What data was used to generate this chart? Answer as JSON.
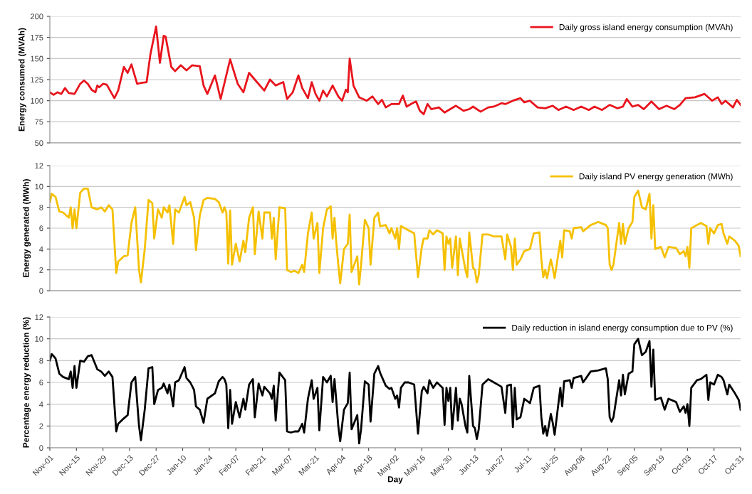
{
  "chart_data": [
    {
      "type": "line",
      "ylabel": "Energy consumed (MVAh)",
      "ylim": [
        50,
        200
      ],
      "yticks": [
        50,
        75,
        100,
        125,
        150,
        175,
        200
      ],
      "grid": "y",
      "legend": "top right",
      "line_style": "solid",
      "marker": "none",
      "categories": [
        null,
        null,
        null,
        null,
        null,
        null,
        null,
        null,
        null,
        null,
        null,
        null,
        null,
        null,
        null,
        null,
        null,
        null,
        null,
        null,
        null,
        null,
        null,
        null,
        null,
        null,
        null,
        null,
        null,
        null,
        null,
        null,
        null,
        null,
        null,
        null,
        null,
        null,
        null,
        null,
        null,
        null,
        null,
        null,
        null,
        null,
        null,
        null,
        null,
        null,
        null,
        null,
        null,
        null,
        null,
        null,
        null,
        null,
        null,
        null,
        null,
        null,
        null,
        null,
        null,
        null,
        null,
        null,
        null,
        null,
        null,
        null,
        null,
        null,
        null,
        null,
        null,
        null,
        null,
        null,
        null,
        null,
        null,
        null,
        null,
        null,
        null,
        null,
        null,
        null,
        null,
        null,
        null,
        null,
        null,
        null,
        null,
        null,
        null,
        null,
        null,
        null,
        null,
        null,
        null,
        null,
        null,
        null,
        null,
        null,
        null,
        null,
        null,
        null,
        null,
        null,
        null,
        null,
        null,
        null,
        null,
        null,
        null,
        null,
        null,
        null,
        null,
        null,
        null,
        null,
        null,
        null,
        null,
        null,
        null,
        null,
        null,
        null,
        null,
        null,
        null,
        null,
        null,
        null,
        null,
        null,
        null,
        null,
        null,
        null,
        null,
        null,
        null,
        null,
        null,
        null,
        null,
        null,
        null,
        null,
        null,
        null,
        null,
        null,
        null,
        null,
        null,
        null,
        null,
        null,
        null,
        null,
        null,
        null,
        null,
        null,
        null,
        null,
        null,
        null,
        null,
        null,
        null,
        null,
        null,
        null,
        null,
        null,
        null,
        null,
        null,
        null,
        null,
        null,
        null,
        null,
        null,
        null,
        null,
        null,
        null,
        null,
        null,
        null,
        null,
        null,
        null,
        null,
        null,
        null,
        null,
        null,
        null,
        null,
        null,
        null,
        null,
        null,
        null,
        null,
        null,
        null,
        null,
        null,
        null,
        null,
        null,
        null,
        null,
        null,
        null,
        null,
        null,
        null,
        null,
        null,
        null,
        null,
        null,
        null,
        null,
        null,
        null,
        null,
        null,
        null,
        null,
        null,
        null,
        null,
        null,
        null,
        null,
        null,
        null,
        null,
        null,
        null,
        null,
        null,
        null,
        null,
        null,
        null,
        null,
        null,
        null,
        null,
        null,
        null,
        null,
        null,
        null,
        null,
        null,
        null,
        null,
        null,
        null,
        null,
        null,
        null,
        null,
        null,
        null,
        null,
        null,
        null,
        null,
        null,
        null,
        null,
        null,
        null,
        null,
        null,
        null,
        null,
        null,
        null,
        null,
        null,
        null,
        null,
        null,
        null,
        null,
        null,
        null,
        null,
        null,
        null,
        null,
        null,
        null,
        null,
        null,
        null,
        null,
        null,
        null,
        null,
        null,
        null,
        null,
        null,
        null,
        null,
        null,
        null,
        null,
        null,
        null,
        null,
        null,
        null,
        null,
        null,
        null,
        null,
        null,
        null,
        null,
        null,
        null,
        null,
        null,
        null,
        null,
        null,
        null,
        null,
        null,
        null,
        null,
        null,
        null,
        null,
        null,
        null,
        null,
        null,
        null,
        null,
        null
      ],
      "series": [
        {
          "name": "Daily gross island energy consumption (MVAh)",
          "color": "#e8141c",
          "values": [
            110,
            null,
            107,
            null,
            110,
            null,
            108,
            null,
            115,
            null,
            109,
            null,
            null,
            108,
            null,
            null,
            120,
            null,
            124,
            null,
            120,
            null,
            113,
            null,
            110,
            118,
            116,
            null,
            120,
            null,
            119,
            null,
            null,
            null,
            103,
            null,
            112,
            null,
            null,
            140,
            null,
            133,
            null,
            143,
            null,
            null,
            120,
            null,
            121,
            null,
            null,
            122,
            null,
            155,
            null,
            null,
            188,
            null,
            145,
            null,
            177,
            176,
            null,
            null,
            140,
            null,
            135,
            null,
            null,
            142,
            null,
            null,
            136,
            null,
            null,
            142,
            null,
            null,
            null,
            141,
            null,
            118,
            null,
            108,
            null,
            null,
            null,
            130,
            null,
            null,
            102,
            null,
            null,
            null,
            null,
            149,
            null,
            null,
            null,
            120,
            null,
            null,
            110,
            null,
            null,
            133,
            null,
            null,
            125,
            null,
            null,
            null,
            null,
            112,
            null,
            null,
            125,
            null,
            null,
            118,
            null,
            null,
            null,
            122,
            null,
            102,
            null,
            null,
            110,
            null,
            null,
            130,
            null,
            115,
            null,
            null,
            103,
            null,
            122,
            null,
            108,
            null,
            100,
            null,
            112,
            null,
            105,
            null,
            null,
            118,
            null,
            null,
            105,
            null,
            100,
            null,
            113,
            110,
            150,
            null,
            118,
            null,
            null,
            104,
            null,
            null,
            null,
            100,
            null,
            null,
            105,
            null,
            null,
            96,
            null,
            101,
            null,
            92,
            null,
            null,
            96,
            null,
            null,
            null,
            96,
            null,
            106,
            null,
            93,
            null,
            null,
            97,
            null,
            99,
            null,
            88,
            null,
            84,
            null,
            96,
            null,
            90,
            null,
            null,
            null,
            92,
            null,
            null,
            86,
            null,
            null,
            90,
            null,
            null,
            94,
            null,
            null,
            null,
            88,
            null,
            null,
            90,
            null,
            93,
            null,
            null,
            null,
            87,
            null,
            null,
            null,
            92,
            null,
            null,
            93,
            null,
            null,
            null,
            97,
            null,
            96,
            null,
            null,
            null,
            100,
            null,
            null,
            null,
            103,
            null,
            98,
            null,
            null,
            100,
            null,
            null,
            null,
            92,
            null,
            null,
            null,
            91,
            null,
            null,
            null,
            94,
            null,
            null,
            89,
            null,
            null,
            null,
            93,
            null,
            null,
            null,
            89,
            null,
            null,
            null,
            93,
            null,
            null,
            null,
            89,
            null,
            null,
            93,
            null,
            null,
            null,
            89,
            null,
            null,
            null,
            95,
            null,
            null,
            null,
            91,
            null,
            null,
            93,
            null,
            102,
            null,
            null,
            93,
            null,
            null,
            95,
            null,
            null,
            90,
            null,
            null,
            null,
            99,
            null,
            null,
            null,
            90,
            null,
            null,
            null,
            94,
            null,
            null,
            null,
            90,
            null,
            null,
            95,
            null,
            null,
            103,
            null,
            null,
            null,
            null,
            104,
            null,
            null,
            null,
            null,
            108,
            null,
            null,
            null,
            100,
            null,
            null,
            104,
            null,
            96,
            null,
            100,
            null,
            null,
            null,
            92,
            null,
            101,
            null,
            95
          ]
        }
      ]
    },
    {
      "type": "line",
      "ylabel": "Energy generated (MWh)",
      "ylim": [
        0,
        12
      ],
      "yticks": [
        0,
        2,
        4,
        6,
        8,
        10,
        12
      ],
      "grid": "y",
      "legend": "top right",
      "line_style": "solid",
      "marker": "none",
      "categories": [
        null,
        null,
        null,
        null,
        null,
        null,
        null,
        null,
        null,
        null,
        null,
        null,
        null,
        null,
        null,
        null,
        null,
        null,
        null,
        null,
        null,
        null,
        null,
        null,
        null,
        null,
        null,
        null,
        null,
        null,
        null,
        null,
        null,
        null,
        null,
        null,
        null,
        null,
        null,
        null,
        null,
        null,
        null,
        null,
        null,
        null,
        null,
        null,
        null,
        null,
        null,
        null,
        null,
        null,
        null,
        null,
        null,
        null,
        null,
        null,
        null,
        null,
        null,
        null,
        null,
        null,
        null,
        null,
        null,
        null,
        null,
        null,
        null,
        null,
        null,
        null,
        null,
        null,
        null,
        null,
        null,
        null,
        null,
        null,
        null,
        null,
        null,
        null,
        null,
        null,
        null,
        null,
        null,
        null,
        null,
        null,
        null,
        null,
        null,
        null,
        null,
        null,
        null,
        null,
        null,
        null,
        null,
        null,
        null,
        null,
        null,
        null,
        null,
        null,
        null,
        null,
        null,
        null,
        null,
        null,
        null,
        null,
        null,
        null,
        null,
        null,
        null,
        null,
        null,
        null,
        null,
        null,
        null,
        null,
        null,
        null,
        null,
        null,
        null,
        null,
        null,
        null,
        null,
        null,
        null,
        null,
        null,
        null,
        null,
        null,
        null,
        null,
        null,
        null,
        null,
        null,
        null,
        null,
        null,
        null,
        null,
        null,
        null,
        null,
        null,
        null,
        null,
        null,
        null,
        null,
        null,
        null,
        null,
        null,
        null,
        null,
        null,
        null,
        null,
        null,
        null,
        null,
        null,
        null,
        null,
        null,
        null,
        null,
        null,
        null,
        null,
        null,
        null,
        null,
        null,
        null,
        null,
        null,
        null,
        null,
        null,
        null,
        null,
        null,
        null,
        null,
        null,
        null,
        null,
        null,
        null,
        null,
        null,
        null,
        null,
        null,
        null,
        null,
        null,
        null,
        null,
        null,
        null,
        null,
        null,
        null,
        null,
        null,
        null,
        null,
        null,
        null,
        null,
        null,
        null,
        null,
        null,
        null,
        null,
        null,
        null,
        null,
        null,
        null,
        null,
        null,
        null,
        null,
        null,
        null,
        null,
        null,
        null,
        null,
        null,
        null,
        null,
        null,
        null,
        null,
        null,
        null,
        null,
        null,
        null,
        null,
        null,
        null,
        null,
        null,
        null,
        null,
        null,
        null,
        null,
        null,
        null,
        null,
        null,
        null,
        null,
        null,
        null,
        null,
        null,
        null,
        null,
        null,
        null,
        null,
        null,
        null,
        null,
        null,
        null,
        null,
        null,
        null,
        null,
        null,
        null,
        null,
        null,
        null,
        null,
        null,
        null,
        null,
        null,
        null,
        null,
        null,
        null,
        null,
        null,
        null,
        null,
        null,
        null,
        null,
        null,
        null,
        null,
        null,
        null,
        null,
        null,
        null,
        null,
        null,
        null,
        null,
        null,
        null,
        null,
        null,
        null,
        null,
        null,
        null,
        null,
        null,
        null,
        null,
        null,
        null,
        null,
        null,
        null,
        null,
        null,
        null,
        null,
        null,
        null,
        null,
        null,
        null,
        null,
        null,
        null,
        null,
        null,
        null,
        null
      ],
      "series": [
        {
          "name": "Daily island PV energy generation (MWh)",
          "color": "#f5c000",
          "values": [
            8.5,
            9.3,
            null,
            9.0,
            null,
            7.6,
            null,
            7.5,
            null,
            null,
            7.0,
            8.0,
            6.0,
            7.8,
            6.0,
            null,
            9.4,
            null,
            9.8,
            null,
            9.8,
            null,
            8.0,
            null,
            null,
            7.8,
            null,
            8.0,
            null,
            7.6,
            null,
            8.2,
            null,
            7.8,
            null,
            1.7,
            2.8,
            null,
            null,
            3.3,
            null,
            3.4,
            null,
            6.5,
            null,
            8.0,
            null,
            2.0,
            0.8,
            null,
            4.0,
            null,
            8.7,
            null,
            8.4,
            5.0,
            null,
            7.8,
            null,
            7.0,
            8.0,
            null,
            7.5,
            8.2,
            null,
            4.5,
            7.8,
            null,
            7.5,
            null,
            null,
            9.0,
            8.2,
            null,
            8.5,
            null,
            7.0,
            3.9,
            null,
            7.2,
            null,
            8.7,
            null,
            8.9,
            null,
            null,
            null,
            8.8,
            null,
            8.5,
            null,
            7.5,
            8.0,
            7.5,
            2.6,
            7.7,
            2.5,
            null,
            4.5,
            null,
            2.8,
            null,
            4.8,
            3.7,
            null,
            7.0,
            null,
            8.0,
            3.5,
            null,
            7.6,
            null,
            5.0,
            7.5,
            null,
            null,
            7.5,
            5.0,
            7.0,
            3.0,
            null,
            8.0,
            null,
            null,
            7.9,
            2.0,
            null,
            1.8,
            null,
            1.9,
            null,
            1.7,
            null,
            2.5,
            1.8,
            null,
            5.5,
            null,
            7.5,
            5.0,
            null,
            6.5,
            1.7,
            null,
            6.0,
            null,
            7.8,
            null,
            8.1,
            5.0,
            7.0,
            4.5,
            2.5,
            0.7,
            null,
            4.0,
            null,
            4.5,
            7.3,
            1.8,
            null,
            null,
            3.3,
            0.6,
            2.5,
            null,
            6.8,
            null,
            6.0,
            2.5,
            null,
            7.0,
            null,
            7.5,
            6.2,
            null,
            null,
            6.3,
            null,
            5.5,
            6.0,
            null,
            5.0,
            6.0,
            4.0,
            6.2,
            null,
            6.0,
            null,
            5.8,
            null,
            null,
            5.5,
            null,
            1.3,
            null,
            4.2,
            5.0,
            null,
            5.0,
            5.8,
            null,
            5.4,
            null,
            5.8,
            null,
            null,
            5.5,
            2.0,
            5.2,
            4.5,
            5.0,
            2.2,
            null,
            5.2,
            1.5,
            5.0,
            4.0,
            null,
            2.0,
            1.3,
            5.6,
            null,
            2.2,
            2.0,
            0.8,
            1.5,
            null,
            5.4,
            null,
            null,
            5.4,
            null,
            null,
            5.2,
            null,
            null,
            null,
            5.2,
            null,
            3.0,
            5.4,
            null,
            4.2,
            2.0,
            5.0,
            2.5,
            null,
            3.0,
            null,
            3.8,
            null,
            null,
            4.0,
            null,
            5.5,
            null,
            null,
            5.6,
            3.0,
            1.3,
            2.0,
            1.2,
            null,
            3.0,
            2.2,
            1.2,
            null,
            null,
            4.8,
            3.2,
            5.8,
            null,
            null,
            5.7,
            5.0,
            6.0,
            null,
            null,
            null,
            6.1,
            5.7,
            null,
            null,
            null,
            6.3,
            null,
            null,
            null,
            6.6,
            null,
            null,
            null,
            6.3,
            6.0,
            2.5,
            2.0,
            2.5,
            null,
            null,
            6.5,
            4.5,
            6.4,
            4.5,
            null,
            6.0,
            null,
            6.6,
            9.0,
            null,
            9.6,
            null,
            8.0,
            null,
            7.8,
            null,
            9.3,
            5.0,
            8.2,
            4.0,
            null,
            null,
            4.2,
            null,
            3.2,
            null,
            4.2,
            null,
            null,
            null,
            4.1,
            null,
            3.5,
            null,
            3.8,
            3.3,
            4.2,
            2.2,
            6.0,
            null,
            null,
            6.3,
            null,
            6.5,
            null,
            null,
            6.2,
            4.5,
            6.0,
            null,
            5.5,
            null,
            6.3,
            null,
            6.4,
            5.5,
            null,
            4.5,
            5.2,
            null,
            null,
            4.8,
            null,
            4.3,
            3.3
          ]
        }
      ]
    },
    {
      "type": "line",
      "xlabel": "Day",
      "ylabel": "Percentage energy reduction (%)",
      "ylim": [
        0,
        12
      ],
      "yticks": [
        0,
        2,
        4,
        6,
        8,
        10,
        12
      ],
      "grid": "y",
      "legend": "top right",
      "line_style": "solid",
      "marker": "none",
      "categories": [
        "Nov-01",
        null,
        null,
        null,
        null,
        null,
        null,
        null,
        null,
        null,
        null,
        null,
        null,
        null,
        "Nov-15",
        null,
        null,
        null,
        null,
        null,
        null,
        null,
        null,
        null,
        null,
        null,
        null,
        null,
        "Nov-29",
        null,
        null,
        null,
        null,
        null,
        null,
        null,
        null,
        null,
        null,
        null,
        null,
        null,
        "Dec-13",
        null,
        null,
        null,
        null,
        null,
        null,
        null,
        null,
        null,
        null,
        null,
        null,
        null,
        "Dec-27",
        null,
        null,
        null,
        null,
        null,
        null,
        null,
        null,
        null,
        null,
        null,
        null,
        null,
        "Jan-10",
        null,
        null,
        null,
        null,
        null,
        null,
        null,
        null,
        null,
        null,
        null,
        null,
        null,
        "Jan-24",
        null,
        null,
        null,
        null,
        null,
        null,
        null,
        null,
        null,
        null,
        null,
        null,
        null,
        "Feb-07",
        null,
        null,
        null,
        null,
        null,
        null,
        null,
        null,
        null,
        null,
        null,
        null,
        null,
        "Feb-21",
        null,
        null,
        null,
        null,
        null,
        null,
        null,
        null,
        null,
        null,
        null,
        null,
        null,
        "Mar-07",
        null,
        null,
        null,
        null,
        null,
        null,
        null,
        null,
        null,
        null,
        null,
        null,
        null,
        "Mar-21",
        null,
        null,
        null,
        null,
        null,
        null,
        null,
        null,
        null,
        null,
        null,
        null,
        null,
        "Apr-04",
        null,
        null,
        null,
        null,
        null,
        null,
        null,
        null,
        null,
        null,
        null,
        null,
        null,
        "Apr-18",
        null,
        null,
        null,
        null,
        null,
        null,
        null,
        null,
        null,
        null,
        null,
        null,
        null,
        "May-02",
        null,
        null,
        null,
        null,
        null,
        null,
        null,
        null,
        null,
        null,
        null,
        null,
        null,
        "May-16",
        null,
        null,
        null,
        null,
        null,
        null,
        null,
        null,
        null,
        null,
        null,
        null,
        null,
        "May-30",
        null,
        null,
        null,
        null,
        null,
        null,
        null,
        null,
        null,
        null,
        null,
        null,
        null,
        "Jun-13",
        null,
        null,
        null,
        null,
        null,
        null,
        null,
        null,
        null,
        null,
        null,
        null,
        null,
        "Jun-27",
        null,
        null,
        null,
        null,
        null,
        null,
        null,
        null,
        null,
        null,
        null,
        null,
        null,
        "Jul-11",
        null,
        null,
        null,
        null,
        null,
        null,
        null,
        null,
        null,
        null,
        null,
        null,
        null,
        "Jul-25",
        null,
        null,
        null,
        null,
        null,
        null,
        null,
        null,
        null,
        null,
        null,
        null,
        null,
        "Aug-08",
        null,
        null,
        null,
        null,
        null,
        null,
        null,
        null,
        null,
        null,
        null,
        null,
        null,
        "Aug-22",
        null,
        null,
        null,
        null,
        null,
        null,
        null,
        null,
        null,
        null,
        null,
        null,
        null,
        "Sep-05",
        null,
        null,
        null,
        null,
        null,
        null,
        null,
        null,
        null,
        null,
        null,
        null,
        null,
        "Sep-19",
        null,
        null,
        null,
        null,
        null,
        null,
        null,
        null,
        null,
        null,
        null,
        null,
        null,
        "Oct-03",
        null,
        null,
        null,
        null,
        null,
        null,
        null,
        null,
        null,
        null,
        null,
        null,
        null,
        "Oct-17",
        null,
        null,
        null,
        null,
        null,
        null,
        null,
        null,
        null,
        null,
        null,
        null,
        null,
        "Oct-31"
      ],
      "series": [
        {
          "name": "Daily reduction in island energy consumption due to PV (%)",
          "color": "#000000",
          "values": [
            8.0,
            8.6,
            null,
            8.2,
            null,
            6.8,
            null,
            6.5,
            null,
            null,
            6.3,
            7.0,
            5.5,
            7.5,
            5.5,
            null,
            8.0,
            null,
            7.9,
            null,
            8.4,
            null,
            8.5,
            null,
            null,
            7.2,
            null,
            7.0,
            null,
            6.6,
            null,
            7.0,
            null,
            6.5,
            null,
            1.5,
            2.2,
            null,
            null,
            2.7,
            null,
            3.0,
            null,
            6.0,
            null,
            6.5,
            null,
            2.0,
            0.7,
            null,
            3.5,
            null,
            7.3,
            null,
            7.4,
            4.0,
            null,
            5.3,
            null,
            5.5,
            5.9,
            null,
            5.0,
            5.8,
            null,
            3.8,
            6.0,
            null,
            6.2,
            null,
            null,
            7.4,
            6.4,
            null,
            6.0,
            null,
            5.3,
            3.8,
            null,
            3.5,
            null,
            2.3,
            null,
            4.5,
            null,
            null,
            null,
            5.0,
            null,
            6.1,
            null,
            6.5,
            6.3,
            5.8,
            1.8,
            5.3,
            2.2,
            null,
            4.2,
            null,
            2.8,
            null,
            4.5,
            3.5,
            null,
            5.8,
            null,
            6.3,
            2.8,
            null,
            5.9,
            null,
            4.8,
            5.6,
            null,
            null,
            5.0,
            4.5,
            5.7,
            2.5,
            null,
            6.9,
            null,
            null,
            6.2,
            1.5,
            null,
            1.4,
            null,
            1.5,
            null,
            1.5,
            null,
            2.2,
            1.4,
            null,
            4.5,
            null,
            6.2,
            4.5,
            null,
            5.5,
            1.6,
            null,
            6.5,
            null,
            6.0,
            null,
            6.6,
            4.2,
            6.3,
            4.2,
            2.0,
            0.6,
            null,
            3.5,
            null,
            4.1,
            6.9,
            1.7,
            null,
            null,
            3.0,
            0.4,
            1.7,
            null,
            6.1,
            null,
            5.8,
            2.4,
            null,
            6.8,
            null,
            7.5,
            6.9,
            null,
            null,
            5.7,
            null,
            5.4,
            5.5,
            null,
            4.5,
            4.8,
            3.7,
            5.5,
            null,
            6.0,
            null,
            6.0,
            null,
            null,
            5.8,
            null,
            1.3,
            null,
            5.2,
            5.6,
            null,
            5.0,
            6.2,
            null,
            5.5,
            null,
            6.0,
            null,
            null,
            5.5,
            2.1,
            5.5,
            4.3,
            5.5,
            1.7,
            null,
            5.5,
            2.5,
            4.5,
            4.0,
            null,
            2.0,
            1.4,
            6.6,
            null,
            2.0,
            1.8,
            0.8,
            1.7,
            null,
            5.8,
            null,
            null,
            6.3,
            null,
            null,
            6.0,
            null,
            null,
            null,
            5.6,
            null,
            3.2,
            5.7,
            null,
            5.8,
            1.9,
            5.5,
            2.6,
            null,
            2.8,
            null,
            4.5,
            null,
            null,
            4.1,
            null,
            5.5,
            null,
            null,
            5.7,
            2.8,
            1.3,
            2.0,
            1.1,
            null,
            3.1,
            2.3,
            1.2,
            null,
            null,
            5.5,
            3.8,
            6.1,
            null,
            null,
            6.2,
            5.5,
            6.4,
            null,
            null,
            null,
            6.6,
            6.0,
            null,
            null,
            null,
            7.0,
            null,
            null,
            null,
            7.1,
            null,
            null,
            null,
            7.3,
            6.3,
            2.8,
            2.4,
            2.8,
            null,
            null,
            6.2,
            4.8,
            6.7,
            4.9,
            null,
            6.8,
            null,
            7.0,
            9.5,
            null,
            10.0,
            null,
            8.5,
            null,
            8.8,
            null,
            9.8,
            5.6,
            9.0,
            4.4,
            null,
            null,
            4.6,
            null,
            3.5,
            null,
            4.5,
            null,
            null,
            null,
            4.2,
            null,
            3.3,
            null,
            3.8,
            3.2,
            4.0,
            2.0,
            5.5,
            null,
            null,
            6.2,
            null,
            6.3,
            null,
            null,
            6.7,
            4.4,
            6.0,
            null,
            5.8,
            null,
            6.7,
            null,
            6.5,
            6.2,
            null,
            4.9,
            5.8,
            null,
            null,
            5.0,
            null,
            4.4,
            3.5
          ]
        }
      ]
    }
  ]
}
